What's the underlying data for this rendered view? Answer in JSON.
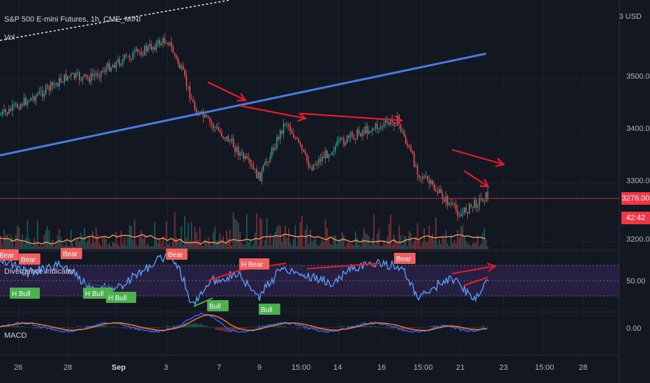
{
  "header": {
    "symbol_title": "S&P 500 E-mini Futures, 1h, CME_MINI",
    "currency": "USD",
    "currency_lead": "3",
    "volume_label": "Vol",
    "divergence_label": "Divergence Indicator",
    "macd_label": "MACD"
  },
  "price_axis": {
    "ticks": [
      "3500.00",
      "3400.00",
      "3300.00",
      "3200.00"
    ],
    "last_price": "3276.00",
    "countdown": "42:42"
  },
  "rsi_axis": {
    "ticks": [
      "50.00"
    ]
  },
  "macd_axis": {
    "ticks": [
      "0.00"
    ]
  },
  "time_axis": {
    "ticks": [
      "26",
      "28",
      "Sep",
      "3",
      "7",
      "9",
      "15:00",
      "14",
      "16",
      "15:00",
      "21",
      "23",
      "15:00",
      "28"
    ]
  },
  "colors": {
    "background": "#131722",
    "trendline": "#4a7be0",
    "divergence_arrow": "#e01e2c",
    "bull": "#4caf50",
    "bear": "#f06060",
    "rsi_line": "#5b9cf6",
    "rsi_band": "#2a2148",
    "vol_ma": "#f0965a",
    "macd_line": "#2962ff",
    "signal_line": "#f07a2a",
    "up_candle": "#26a69a",
    "down_candle": "#ef5350"
  },
  "labels": {
    "bear_tags": [
      "Bear",
      "Bear",
      "Bear",
      "Bear",
      "H Bear",
      "Bear"
    ],
    "bull_tags": [
      "H Bull",
      "H Bull",
      "H Bull",
      "Bull",
      "Bull"
    ]
  },
  "chart_data": {
    "type": "candlestick",
    "instrument": "S&P 500 E-mini Futures",
    "timeframe": "1h",
    "price_ylim": [
      3180,
      3580
    ],
    "price_path": [
      {
        "date": "Aug 24",
        "price": 3430
      },
      {
        "date": "Aug 25",
        "price": 3435
      },
      {
        "date": "Aug 26",
        "price": 3450
      },
      {
        "date": "Aug 27",
        "price": 3475
      },
      {
        "date": "Aug 28",
        "price": 3505
      },
      {
        "date": "Aug 31",
        "price": 3500
      },
      {
        "date": "Sep 1",
        "price": 3530
      },
      {
        "date": "Sep 2",
        "price": 3575
      },
      {
        "date": "Sep 3",
        "price": 3510
      },
      {
        "date": "Sep 4",
        "price": 3440
      },
      {
        "date": "Sep 8",
        "price": 3380
      },
      {
        "date": "Sep 9",
        "price": 3310
      },
      {
        "date": "Sep 10",
        "price": 3420
      },
      {
        "date": "Sep 11",
        "price": 3330
      },
      {
        "date": "Sep 14",
        "price": 3375
      },
      {
        "date": "Sep 15",
        "price": 3400
      },
      {
        "date": "Sep 16",
        "price": 3410
      },
      {
        "date": "Sep 17",
        "price": 3420
      },
      {
        "date": "Sep 18",
        "price": 3320
      },
      {
        "date": "Sep 21",
        "price": 3240
      },
      {
        "date": "Sep 22",
        "price": 3276
      }
    ],
    "last_price": 3276.0,
    "rsi_band": [
      30,
      70
    ],
    "annotations": [
      "Bear",
      "H Bear",
      "H Bull",
      "Bull"
    ]
  }
}
